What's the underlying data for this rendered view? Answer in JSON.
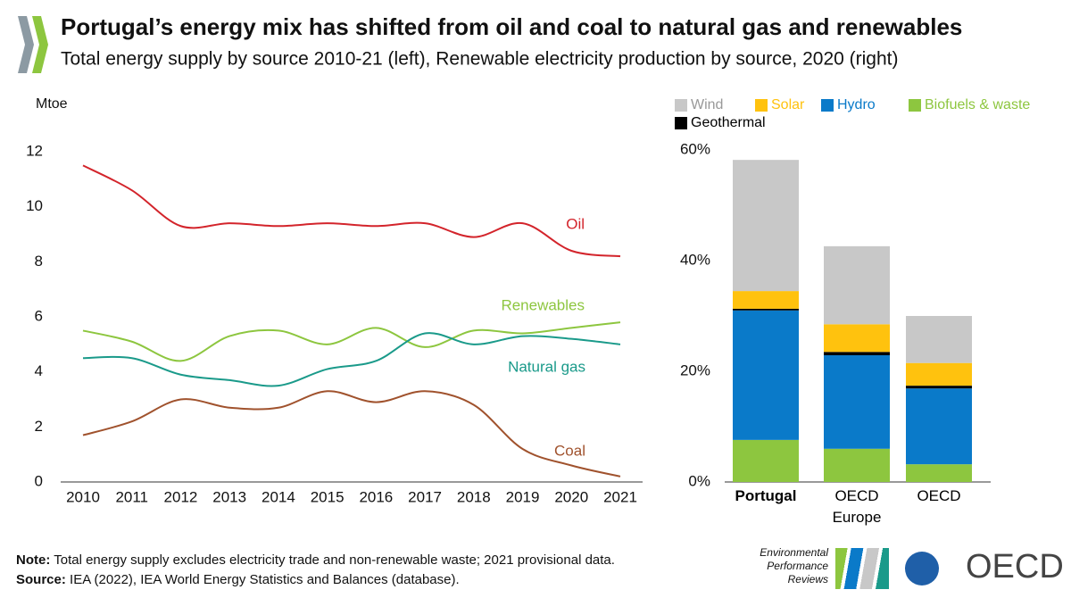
{
  "header": {
    "title": "Portugal’s energy mix has shifted from oil and coal to natural gas and renewables",
    "subtitle": "Total energy supply by source 2010-21 (left), Renewable electricity production by source, 2020 (right)"
  },
  "chart_data": [
    {
      "type": "line",
      "y_label": "Mtoe",
      "categories": [
        "2010",
        "2011",
        "2012",
        "2013",
        "2014",
        "2015",
        "2016",
        "2017",
        "2018",
        "2019",
        "2020",
        "2021"
      ],
      "ylim": [
        0,
        12
      ],
      "yticks": [
        0,
        2,
        4,
        6,
        8,
        10,
        12
      ],
      "series": [
        {
          "name": "Oil",
          "color": "#d3242b",
          "values": [
            11.5,
            10.6,
            9.3,
            9.4,
            9.3,
            9.4,
            9.3,
            9.4,
            8.9,
            9.4,
            8.4,
            8.2
          ]
        },
        {
          "name": "Renewables",
          "color": "#8dc63f",
          "values": [
            5.5,
            5.1,
            4.4,
            5.3,
            5.5,
            5.0,
            5.6,
            4.9,
            5.5,
            5.4,
            5.6,
            5.8
          ]
        },
        {
          "name": "Natural gas",
          "color": "#1a9a8a",
          "values": [
            4.5,
            4.5,
            3.9,
            3.7,
            3.5,
            4.1,
            4.4,
            5.4,
            5.0,
            5.3,
            5.2,
            5.0
          ]
        },
        {
          "name": "Coal",
          "color": "#a0522d",
          "values": [
            1.7,
            2.2,
            3.0,
            2.7,
            2.7,
            3.3,
            2.9,
            3.3,
            2.8,
            1.2,
            0.6,
            0.2
          ]
        }
      ]
    },
    {
      "type": "bar",
      "stacked": true,
      "categories": [
        "Portugal",
        "OECD Europe",
        "OECD"
      ],
      "ylim": [
        0,
        60
      ],
      "yticks": [
        {
          "value": 0,
          "label": "0%"
        },
        {
          "value": 20,
          "label": "20%"
        },
        {
          "value": 40,
          "label": "40%"
        },
        {
          "value": 60,
          "label": "60%"
        }
      ],
      "series": [
        {
          "name": "Wind",
          "color": "#c8c8c8",
          "values": [
            23.7,
            14.1,
            8.5
          ]
        },
        {
          "name": "Solar",
          "color": "#ffc20e",
          "values": [
            3.2,
            5.0,
            4.1
          ]
        },
        {
          "name": "Hydro",
          "color": "#0a7ac9",
          "values": [
            23.4,
            16.9,
            13.7
          ]
        },
        {
          "name": "Biofuels & waste",
          "color": "#8dc63f",
          "values": [
            7.6,
            6.0,
            3.2
          ]
        },
        {
          "name": "Geothermal",
          "color": "#000000",
          "values": [
            0.3,
            0.6,
            0.5
          ]
        }
      ]
    }
  ],
  "footer": {
    "note_label": "Note:",
    "note": "Total energy supply excludes electricity trade and non-renewable waste; 2021 provisional data.",
    "source_label": "Source:",
    "source": "IEA (2022), IEA World Energy Statistics and Balances (database).",
    "epr_logo": "Environmental Performance Reviews",
    "oecd_logo": "OECD"
  }
}
